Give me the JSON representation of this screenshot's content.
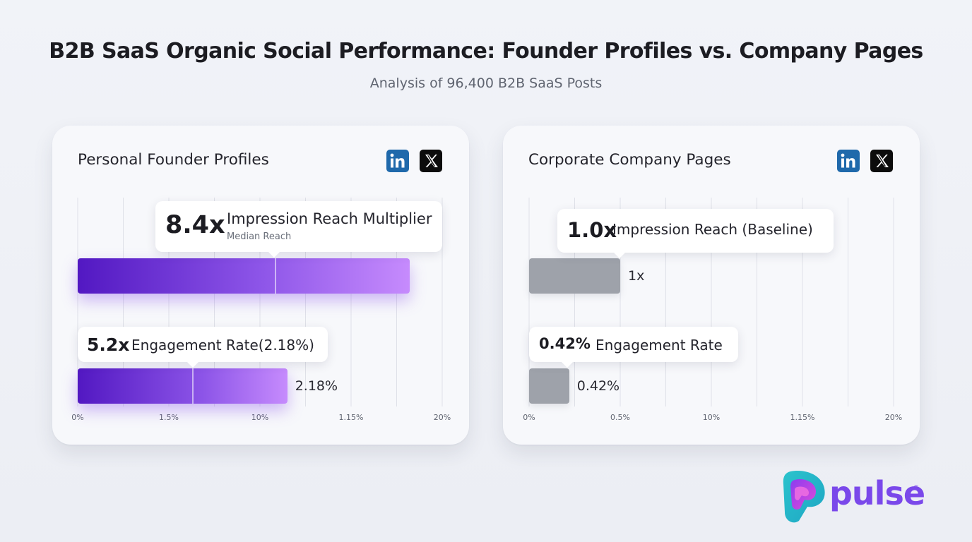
{
  "page": {
    "title": "B2B SaaS Organic Social Performance: Founder Profiles vs. Company Pages",
    "subtitle": "Analysis of 96,400 B2B SaaS Posts"
  },
  "logo": {
    "text": "pulse",
    "registered": "®",
    "colors": [
      "#2bc3cc",
      "#8a3cf0",
      "#e24bd9"
    ]
  },
  "icons": {
    "linkedin": "linkedin-icon",
    "x": "x-twitter-icon"
  },
  "colors": {
    "purple_start": "#5218c2",
    "purple_end": "#c68bfd",
    "grey_bar": "#9ea2aa",
    "linkedin_blue": "#1f69ab",
    "x_black": "#0c0c0c"
  },
  "chart_data": [
    {
      "type": "bar",
      "orientation": "horizontal",
      "title": "Personal Founder Profiles",
      "xticks": [
        "0%",
        "1.5%",
        "10%",
        "1.15%",
        "20%"
      ],
      "grid": true,
      "categories": [
        "Impression Reach",
        "Engagement Rate"
      ],
      "values": [
        18.2,
        11.5
      ],
      "xlim": [
        0,
        20
      ],
      "callouts": [
        {
          "value": "8.4x",
          "label": "Impression Reach Multiplier",
          "sub": "Median Reach"
        },
        {
          "value": "5.2x",
          "label": "Engagement Rate(2.18%)"
        }
      ],
      "bar_labels": [
        "",
        "2.18%"
      ]
    },
    {
      "type": "bar",
      "orientation": "horizontal",
      "title": "Corporate Company Pages",
      "xticks": [
        "0%",
        "0.5%",
        "10%",
        "1.15%",
        "20%"
      ],
      "grid": true,
      "categories": [
        "Impression Reach",
        "Engagement Rate"
      ],
      "values": [
        5.0,
        2.2
      ],
      "xlim": [
        0,
        20
      ],
      "callouts": [
        {
          "value": "1.0x",
          "label": "Impression Reach (Baseline)"
        },
        {
          "value": "0.42%",
          "label": "Engagement Rate"
        }
      ],
      "bar_labels": [
        "1x",
        "0.42%"
      ]
    }
  ]
}
